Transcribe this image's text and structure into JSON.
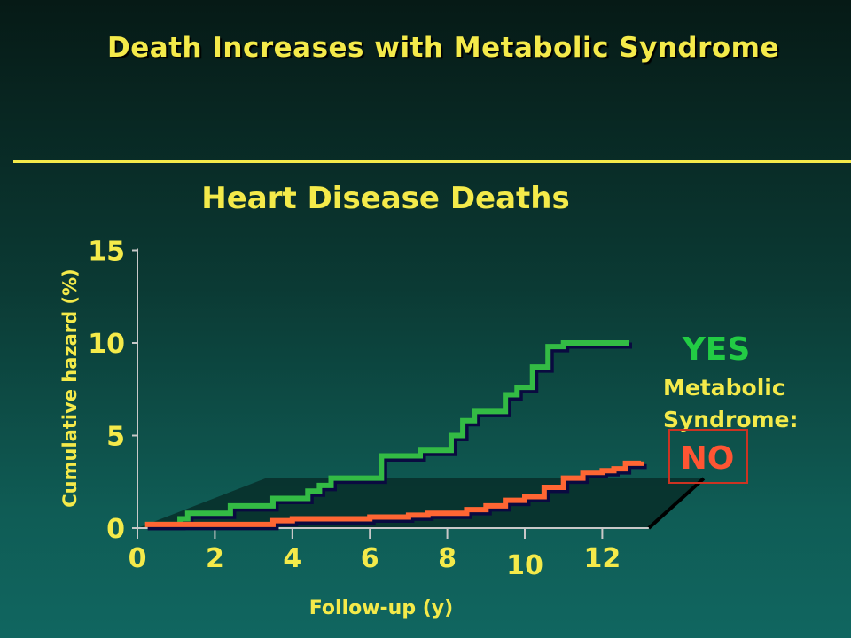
{
  "slide": {
    "title": "Death Increases with Metabolic Syndrome"
  },
  "chart_data": {
    "type": "line",
    "step": true,
    "title": "Heart Disease Deaths",
    "xlabel": "Follow-up (y)",
    "ylabel": "Cumulative hazard (%)",
    "xlim": [
      0,
      13
    ],
    "ylim": [
      0,
      15
    ],
    "x_ticks": [
      0,
      2,
      4,
      6,
      8,
      10,
      12
    ],
    "y_ticks": [
      0,
      5,
      10,
      15
    ],
    "legend_caption": "Metabolic Syndrome:",
    "series": [
      {
        "name": "YES",
        "color": "#33bb44",
        "x": [
          0.2,
          1.1,
          1.3,
          2.4,
          3.5,
          4.4,
          4.7,
          5.0,
          6.0,
          6.3,
          7.3,
          8.1,
          8.4,
          8.7,
          9.0,
          9.5,
          9.8,
          10.2,
          10.6,
          11.0,
          12.7
        ],
        "y": [
          0.2,
          0.5,
          0.8,
          1.2,
          1.6,
          2.0,
          2.3,
          2.7,
          2.7,
          3.9,
          4.2,
          5.0,
          5.8,
          6.3,
          6.3,
          7.2,
          7.6,
          8.7,
          9.8,
          10.0,
          10.0
        ]
      },
      {
        "name": "NO",
        "color": "#ff6633",
        "x": [
          0.2,
          1.0,
          2.0,
          3.0,
          3.5,
          4.0,
          5.0,
          6.0,
          7.0,
          7.5,
          8.0,
          8.5,
          9.0,
          9.5,
          10.0,
          10.5,
          11.0,
          11.5,
          12.0,
          12.3,
          12.6,
          13.0
        ],
        "y": [
          0.2,
          0.2,
          0.2,
          0.2,
          0.4,
          0.5,
          0.5,
          0.6,
          0.7,
          0.8,
          0.8,
          1.0,
          1.2,
          1.5,
          1.7,
          2.2,
          2.7,
          3.0,
          3.1,
          3.2,
          3.5,
          3.6
        ]
      }
    ]
  }
}
